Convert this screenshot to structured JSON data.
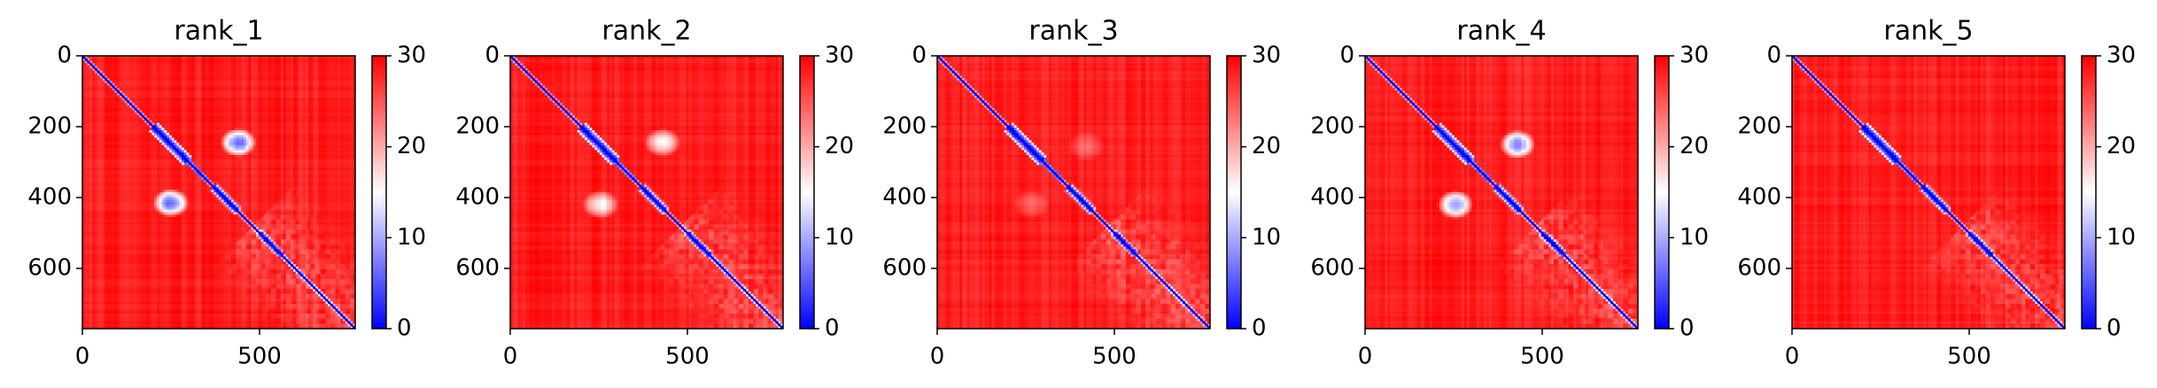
{
  "chart_data": [
    {
      "type": "heatmap",
      "title": "rank_1",
      "n": 770,
      "xlim": [
        0,
        770
      ],
      "ylim": [
        770,
        0
      ],
      "xticks": [
        0,
        500
      ],
      "yticks": [
        0,
        200,
        400,
        600
      ],
      "colorbar": {
        "min": 0,
        "max": 30,
        "ticks": [
          0,
          10,
          20,
          30
        ]
      },
      "colormap": [
        "#0000ff",
        "#ffffff",
        "#ff0000"
      ],
      "blobs": [
        {
          "x": 440,
          "y": 245,
          "strength": 1.0
        },
        {
          "x": 250,
          "y": 415,
          "strength": 1.0
        }
      ]
    },
    {
      "type": "heatmap",
      "title": "rank_2",
      "n": 770,
      "xlim": [
        0,
        770
      ],
      "ylim": [
        770,
        0
      ],
      "xticks": [
        0,
        500
      ],
      "yticks": [
        0,
        200,
        400,
        600
      ],
      "colorbar": {
        "min": 0,
        "max": 30,
        "ticks": [
          0,
          10,
          20,
          30
        ]
      },
      "colormap": [
        "#0000ff",
        "#ffffff",
        "#ff0000"
      ],
      "blobs": [
        {
          "x": 430,
          "y": 245,
          "strength": 0.6
        },
        {
          "x": 255,
          "y": 420,
          "strength": 0.6
        }
      ]
    },
    {
      "type": "heatmap",
      "title": "rank_3",
      "n": 770,
      "xlim": [
        0,
        770
      ],
      "ylim": [
        770,
        0
      ],
      "xticks": [
        0,
        500
      ],
      "yticks": [
        0,
        200,
        400,
        600
      ],
      "colorbar": {
        "min": 0,
        "max": 30,
        "ticks": [
          0,
          10,
          20,
          30
        ]
      },
      "colormap": [
        "#0000ff",
        "#ffffff",
        "#ff0000"
      ],
      "blobs": [
        {
          "x": 420,
          "y": 255,
          "strength": 0.2
        },
        {
          "x": 265,
          "y": 420,
          "strength": 0.2
        }
      ]
    },
    {
      "type": "heatmap",
      "title": "rank_4",
      "n": 770,
      "xlim": [
        0,
        770
      ],
      "ylim": [
        770,
        0
      ],
      "xticks": [
        0,
        500
      ],
      "yticks": [
        0,
        200,
        400,
        600
      ],
      "colorbar": {
        "min": 0,
        "max": 30,
        "ticks": [
          0,
          10,
          20,
          30
        ]
      },
      "colormap": [
        "#0000ff",
        "#ffffff",
        "#ff0000"
      ],
      "blobs": [
        {
          "x": 430,
          "y": 250,
          "strength": 0.9
        },
        {
          "x": 255,
          "y": 420,
          "strength": 0.9
        }
      ]
    },
    {
      "type": "heatmap",
      "title": "rank_5",
      "n": 770,
      "xlim": [
        0,
        770
      ],
      "ylim": [
        770,
        0
      ],
      "xticks": [
        0,
        500
      ],
      "yticks": [
        0,
        200,
        400,
        600
      ],
      "colorbar": {
        "min": 0,
        "max": 30,
        "ticks": [
          0,
          10,
          20,
          30
        ]
      },
      "colormap": [
        "#0000ff",
        "#ffffff",
        "#ff0000"
      ],
      "blobs": []
    }
  ]
}
